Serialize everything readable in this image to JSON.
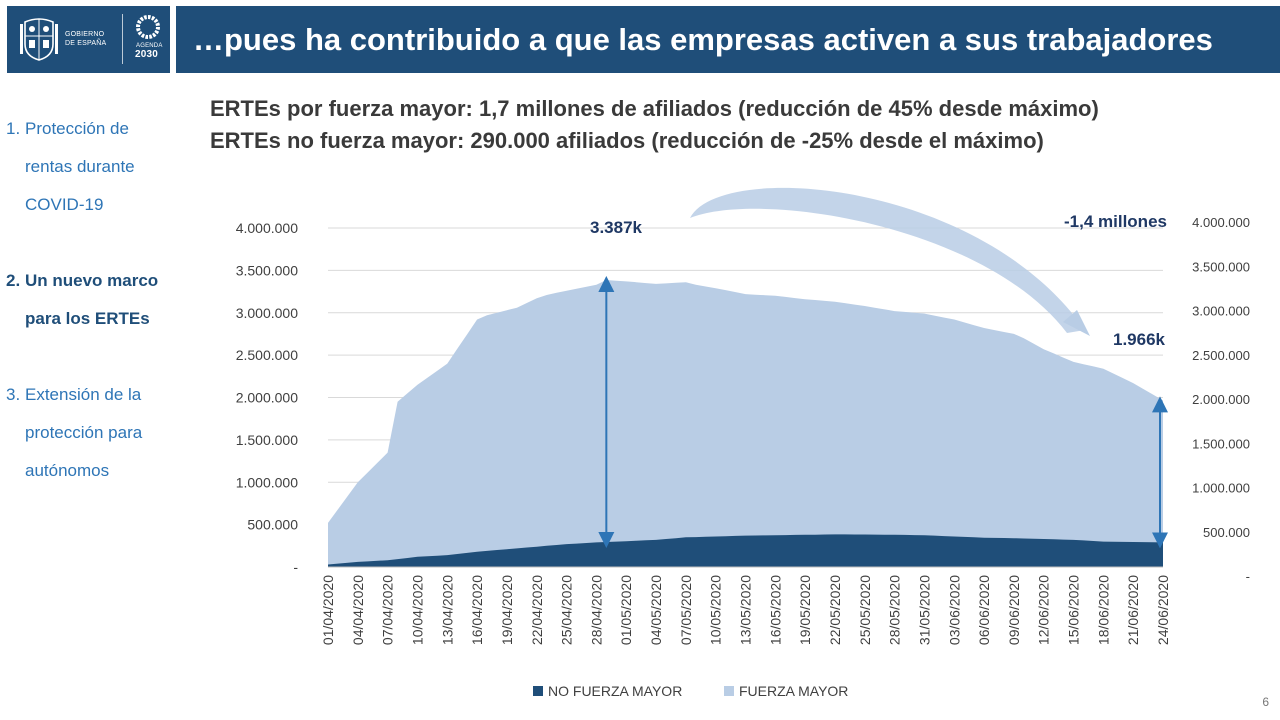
{
  "header": {
    "gov_line1": "GOBIERNO",
    "gov_line2": "DE ESPAÑA",
    "agenda_line1": "AGENDA",
    "agenda_line2": "2030",
    "title": "…pues ha contribuido a que las empresas activen a sus trabajadores"
  },
  "sidebar": {
    "items": [
      {
        "num": "1.",
        "lines": [
          "Protección de",
          "rentas durante",
          "COVID-19"
        ]
      },
      {
        "num": "2.",
        "lines": [
          "Un nuevo marco",
          "para los ERTEs"
        ]
      },
      {
        "num": "3.",
        "lines": [
          "Extensión de la",
          "protección para",
          "autónomos"
        ]
      }
    ]
  },
  "subtitles": {
    "line1": "ERTEs por fuerza mayor: 1,7 millones de afiliados (reducción de 45% desde máximo)",
    "line2": "ERTEs no fuerza mayor: 290.000 afiliados (reducción de -25% desde el máximo)"
  },
  "chart_data": {
    "type": "area",
    "stacked": true,
    "x": [
      "01/04/2020",
      "02/04/2020",
      "03/04/2020",
      "04/04/2020",
      "05/04/2020",
      "06/04/2020",
      "07/04/2020",
      "08/04/2020",
      "09/04/2020",
      "10/04/2020",
      "11/04/2020",
      "12/04/2020",
      "13/04/2020",
      "14/04/2020",
      "15/04/2020",
      "16/04/2020",
      "17/04/2020",
      "18/04/2020",
      "19/04/2020",
      "20/04/2020",
      "21/04/2020",
      "22/04/2020",
      "23/04/2020",
      "24/04/2020",
      "25/04/2020",
      "26/04/2020",
      "27/04/2020",
      "28/04/2020",
      "29/04/2020",
      "30/04/2020",
      "01/05/2020",
      "02/05/2020",
      "03/05/2020",
      "04/05/2020",
      "05/05/2020",
      "06/05/2020",
      "07/05/2020",
      "08/05/2020",
      "09/05/2020",
      "10/05/2020",
      "11/05/2020",
      "12/05/2020",
      "13/05/2020",
      "14/05/2020",
      "15/05/2020",
      "16/05/2020",
      "17/05/2020",
      "18/05/2020",
      "19/05/2020",
      "20/05/2020",
      "21/05/2020",
      "22/05/2020",
      "23/05/2020",
      "24/05/2020",
      "25/05/2020",
      "26/05/2020",
      "27/05/2020",
      "28/05/2020",
      "29/05/2020",
      "30/05/2020",
      "31/05/2020",
      "01/06/2020",
      "02/06/2020",
      "03/06/2020",
      "04/06/2020",
      "05/06/2020",
      "06/06/2020",
      "07/06/2020",
      "08/06/2020",
      "09/06/2020",
      "10/06/2020",
      "11/06/2020",
      "12/06/2020",
      "13/06/2020",
      "14/06/2020",
      "15/06/2020",
      "16/06/2020",
      "17/06/2020",
      "18/06/2020",
      "19/06/2020",
      "20/06/2020",
      "21/06/2020",
      "22/06/2020",
      "23/06/2020",
      "24/06/2020"
    ],
    "x_tick_labels": [
      "01/04/2020",
      "04/04/2020",
      "07/04/2020",
      "10/04/2020",
      "13/04/2020",
      "16/04/2020",
      "19/04/2020",
      "22/04/2020",
      "25/04/2020",
      "28/04/2020",
      "01/05/2020",
      "04/05/2020",
      "07/05/2020",
      "10/05/2020",
      "13/05/2020",
      "16/05/2020",
      "19/05/2020",
      "22/05/2020",
      "25/05/2020",
      "28/05/2020",
      "31/05/2020",
      "03/06/2020",
      "06/06/2020",
      "09/06/2020",
      "12/06/2020",
      "15/06/2020",
      "18/06/2020",
      "21/06/2020",
      "24/06/2020"
    ],
    "total_anchor_days": [
      0,
      3,
      6,
      7,
      9,
      12,
      15,
      16,
      18,
      19,
      21,
      22,
      24,
      27,
      28,
      30,
      33,
      36,
      37,
      39,
      42,
      45,
      48,
      51,
      54,
      57,
      60,
      63,
      66,
      69,
      70,
      72,
      75,
      78,
      81,
      84
    ],
    "total_anchor_values": [
      520000,
      1000000,
      1350000,
      1950000,
      2150000,
      2400000,
      2920000,
      2970000,
      3030000,
      3060000,
      3170000,
      3210000,
      3260000,
      3330000,
      3387000,
      3370000,
      3340000,
      3360000,
      3330000,
      3290000,
      3220000,
      3200000,
      3160000,
      3130000,
      3080000,
      3020000,
      2990000,
      2920000,
      2820000,
      2750000,
      2700000,
      2570000,
      2420000,
      2340000,
      2170000,
      1966000
    ],
    "no_fm_anchor_days": [
      0,
      3,
      6,
      9,
      12,
      15,
      18,
      21,
      24,
      27,
      30,
      33,
      36,
      39,
      42,
      45,
      48,
      51,
      54,
      57,
      60,
      63,
      66,
      69,
      72,
      75,
      78,
      81,
      84
    ],
    "no_fm_anchor_values": [
      30000,
      60000,
      80000,
      120000,
      140000,
      180000,
      210000,
      240000,
      270000,
      290000,
      305000,
      320000,
      350000,
      360000,
      370000,
      375000,
      380000,
      385000,
      383000,
      380000,
      375000,
      360000,
      345000,
      340000,
      330000,
      320000,
      300000,
      295000,
      290000
    ],
    "series": [
      {
        "name": "NO FUERZA MAYOR",
        "color": "#1f4e79"
      },
      {
        "name": "FUERZA MAYOR",
        "color": "#b9cde5"
      }
    ],
    "y_left_ticks": [
      "-",
      "500.000",
      "1.000.000",
      "1.500.000",
      "2.000.000",
      "2.500.000",
      "3.000.000",
      "3.500.000",
      "4.000.000"
    ],
    "y_right_ticks": [
      "-",
      "500.000",
      "1.000.000",
      "1.500.000",
      "2.000.000",
      "2.500.000",
      "3.000.000",
      "3.500.000",
      "4.000.000"
    ],
    "ylim": [
      0,
      4000000
    ],
    "annotations": {
      "peak_label": "3.387k",
      "end_label": "1.966k",
      "drop_label": "-1,4 millones"
    },
    "grid": true,
    "legend_position": "bottom-center"
  },
  "page_number": "6"
}
